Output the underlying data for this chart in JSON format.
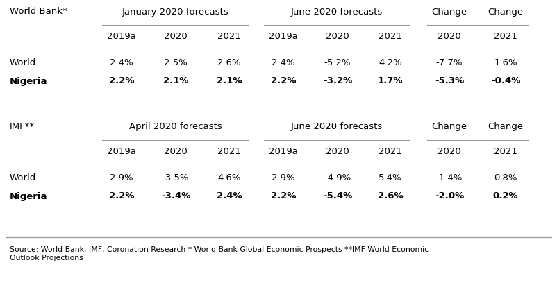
{
  "bg_color": "#ffffff",
  "text_color": "#000000",
  "source_text": "Source: World Bank, IMF, Coronation Research * World Bank Global Economic Prospects **IMF World Economic\nOutlook Projections",
  "wb_label": "World Bank*",
  "wb_forecast1_label": "January 2020 forecasts",
  "wb_forecast2_label": "June 2020 forecasts",
  "wb_change_label": "Change",
  "imf_label": "IMF**",
  "imf_forecast1_label": "April 2020 forecasts",
  "imf_forecast2_label": "June 2020 forecasts",
  "imf_change_label": "Change",
  "col_headers": [
    "2019a",
    "2020",
    "2021",
    "2019a",
    "2020",
    "2021",
    "2020",
    "2021"
  ],
  "wb_world_row": [
    "World",
    "2.4%",
    "2.5%",
    "2.6%",
    "2.4%",
    "-5.2%",
    "4.2%",
    "-7.7%",
    "1.6%"
  ],
  "wb_nigeria_row": [
    "Nigeria",
    "2.2%",
    "2.1%",
    "2.1%",
    "2.2%",
    "-3.2%",
    "1.7%",
    "-5.3%",
    "-0.4%"
  ],
  "imf_world_row": [
    "World",
    "2.9%",
    "-3.5%",
    "4.6%",
    "2.9%",
    "-4.9%",
    "5.4%",
    "-1.4%",
    "0.8%"
  ],
  "imf_nigeria_row": [
    "Nigeria",
    "2.2%",
    "-3.4%",
    "2.4%",
    "2.2%",
    "-5.4%",
    "2.6%",
    "-2.0%",
    "0.2%"
  ],
  "line_color": "#999999",
  "footer_fontsize": 7.8,
  "header_fontsize": 9.5,
  "cell_fontsize": 9.5
}
